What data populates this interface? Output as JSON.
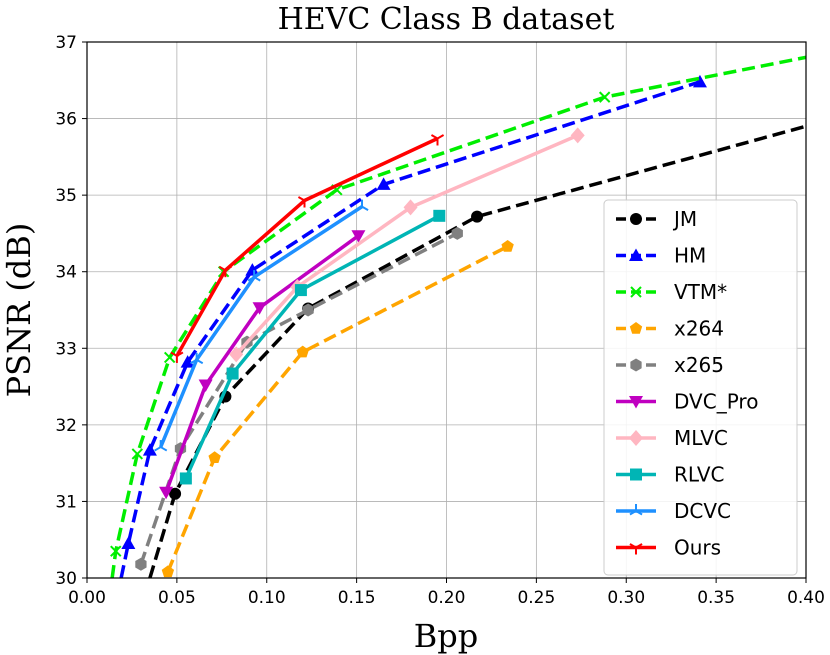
{
  "chart_data": {
    "type": "line",
    "title": "HEVC Class B dataset",
    "xlabel": "Bpp",
    "ylabel": "PSNR (dB)",
    "xlim": [
      0.0,
      0.4
    ],
    "ylim": [
      30,
      37
    ],
    "xticks": [
      "0.00",
      "0.05",
      "0.10",
      "0.15",
      "0.20",
      "0.25",
      "0.30",
      "0.35",
      "0.40"
    ],
    "yticks": [
      "30",
      "31",
      "32",
      "33",
      "34",
      "35",
      "36",
      "37"
    ],
    "grid": true,
    "legend_position": "lower-right",
    "series": [
      {
        "name": "JM",
        "color": "#000000",
        "dash": "dashed",
        "marker": "circle",
        "x": [
          0.035,
          0.049,
          0.077,
          0.123,
          0.217,
          0.4
        ],
        "y": [
          30.0,
          31.1,
          32.37,
          33.52,
          34.72,
          35.9
        ]
      },
      {
        "name": "HM",
        "color": "#0000ff",
        "dash": "dashed",
        "marker": "triangle-up",
        "x": [
          0.019,
          0.023,
          0.035,
          0.056,
          0.092,
          0.165,
          0.341
        ],
        "y": [
          30.0,
          30.45,
          31.67,
          32.82,
          34.02,
          35.14,
          36.48
        ]
      },
      {
        "name": "VTM*",
        "color": "#00ee00",
        "dash": "dashed",
        "marker": "x",
        "x": [
          0.014,
          0.016,
          0.028,
          0.046,
          0.076,
          0.139,
          0.288,
          0.4
        ],
        "y": [
          30.0,
          30.35,
          31.62,
          32.88,
          34.0,
          35.07,
          36.28,
          36.8
        ]
      },
      {
        "name": "x264",
        "color": "#ffa500",
        "dash": "dashed",
        "marker": "pentagon",
        "x": [
          0.045,
          0.071,
          0.12,
          0.234
        ],
        "y": [
          30.08,
          31.57,
          32.95,
          34.33
        ]
      },
      {
        "name": "x265",
        "color": "#808080",
        "dash": "dashed",
        "marker": "hexagon",
        "x": [
          0.03,
          0.052,
          0.089,
          0.123,
          0.206
        ],
        "y": [
          30.18,
          31.69,
          33.08,
          33.5,
          34.5
        ]
      },
      {
        "name": "DVC_Pro",
        "color": "#c000c0",
        "dash": "solid",
        "marker": "triangle-down",
        "x": [
          0.044,
          0.066,
          0.096,
          0.151
        ],
        "y": [
          31.12,
          32.52,
          33.53,
          34.47
        ]
      },
      {
        "name": "MLVC",
        "color": "#ffb6c1",
        "dash": "solid",
        "marker": "diamond",
        "x": [
          0.083,
          0.117,
          0.18,
          0.273
        ],
        "y": [
          32.92,
          33.8,
          34.84,
          35.78
        ]
      },
      {
        "name": "RLVC",
        "color": "#00b5b5",
        "dash": "solid",
        "marker": "square",
        "x": [
          0.055,
          0.081,
          0.119,
          0.196
        ],
        "y": [
          31.3,
          32.67,
          33.76,
          34.73
        ]
      },
      {
        "name": "DCVC",
        "color": "#1e90ff",
        "dash": "solid",
        "marker": "tri-down",
        "x": [
          0.041,
          0.061,
          0.093,
          0.153
        ],
        "y": [
          31.71,
          32.85,
          33.93,
          34.85
        ]
      },
      {
        "name": "Ours",
        "color": "#ff0000",
        "dash": "solid",
        "marker": "tri-up",
        "x": [
          0.05,
          0.077,
          0.121,
          0.195
        ],
        "y": [
          32.9,
          34.02,
          34.93,
          35.74
        ]
      }
    ]
  }
}
